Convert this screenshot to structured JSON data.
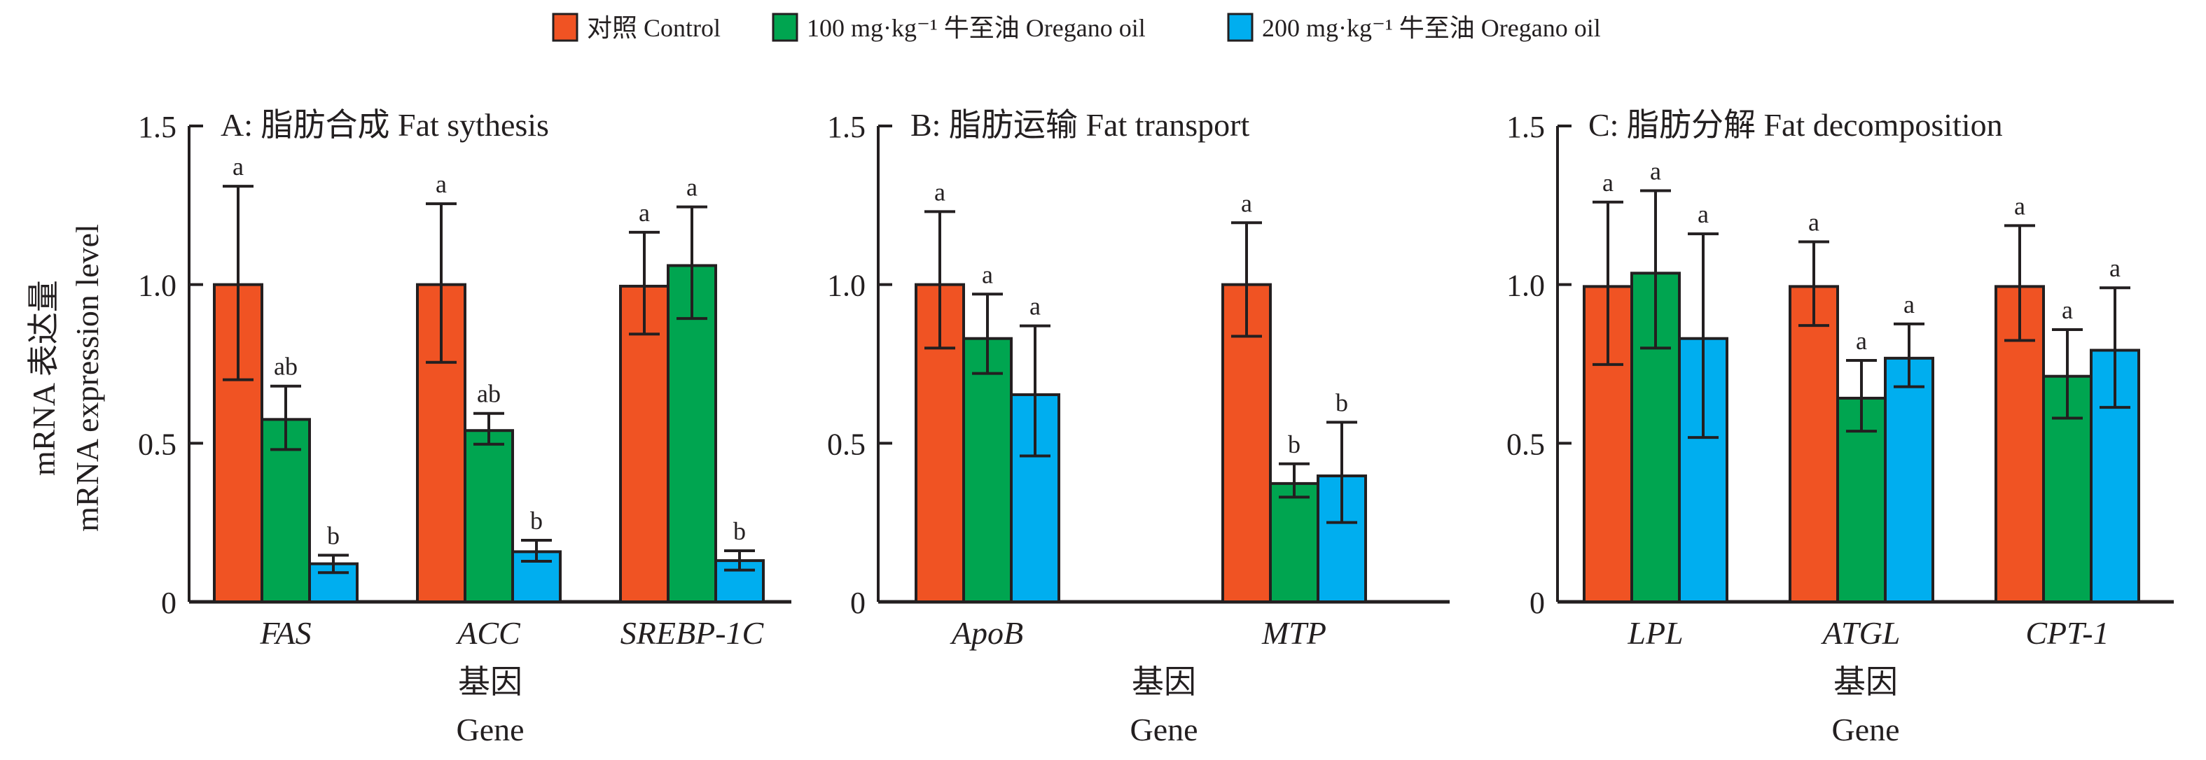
{
  "chart_data": {
    "type": "bar",
    "legend": {
      "placement": "top-center",
      "entries": [
        {
          "name": "对照 Control",
          "color": "#f05323"
        },
        {
          "name": "100 mg·kg⁻¹ 牛至油 Oregano oil",
          "color": "#00a550"
        },
        {
          "name": "200 mg·kg⁻¹ 牛至油 Oregano oil",
          "color": "#00aeef"
        }
      ]
    },
    "ylabel_cn": "mRNA 表达量",
    "ylabel_en": "mRNA expression level",
    "ylim": [
      0,
      1.5
    ],
    "yticks": [
      {
        "value": 0,
        "label": "0"
      },
      {
        "value": 0.5,
        "label": "0.5"
      },
      {
        "value": 1.0,
        "label": "1.0"
      },
      {
        "value": 1.5,
        "label": "1.5"
      }
    ],
    "panels": [
      {
        "id": "A",
        "title": "A: 脂肪合成 Fat sythesis",
        "xlabel_cn": "基因",
        "xlabel_en": "Gene",
        "categories": [
          "FAS",
          "ACC",
          "SREBP-1C"
        ],
        "series": [
          {
            "name": "对照 Control",
            "values": [
              1.0,
              1.0,
              0.995
            ],
            "err_high": [
              1.31,
              1.255,
              1.165
            ],
            "err_low": [
              0.7,
              0.755,
              0.844
            ],
            "sig": [
              "a",
              "a",
              "a"
            ]
          },
          {
            "name": "100 mg·kg⁻¹ 牛至油 Oregano oil",
            "values": [
              0.575,
              0.54,
              1.06
            ],
            "err_high": [
              0.68,
              0.594,
              1.245
            ],
            "err_low": [
              0.48,
              0.497,
              0.893
            ],
            "sig": [
              "ab",
              "ab",
              "a"
            ]
          },
          {
            "name": "200 mg·kg⁻¹ 牛至油 Oregano oil",
            "values": [
              0.12,
              0.158,
              0.13
            ],
            "err_high": [
              0.147,
              0.194,
              0.161
            ],
            "err_low": [
              0.092,
              0.128,
              0.1
            ],
            "sig": [
              "b",
              "b",
              "b"
            ]
          }
        ]
      },
      {
        "id": "B",
        "title": "B: 脂肪运输 Fat transport",
        "xlabel_cn": "基因",
        "xlabel_en": "Gene",
        "categories": [
          "ApoB",
          "MTP"
        ],
        "series": [
          {
            "name": "对照 Control",
            "values": [
              1.0,
              1.0
            ],
            "err_high": [
              1.23,
              1.195
            ],
            "err_low": [
              0.8,
              0.837
            ],
            "sig": [
              "a",
              "a"
            ]
          },
          {
            "name": "100 mg·kg⁻¹ 牛至油 Oregano oil",
            "values": [
              0.83,
              0.373
            ],
            "err_high": [
              0.97,
              0.435
            ],
            "err_low": [
              0.72,
              0.33
            ],
            "sig": [
              "a",
              "b"
            ]
          },
          {
            "name": "200 mg·kg⁻¹ 牛至油 Oregano oil",
            "values": [
              0.653,
              0.397
            ],
            "err_high": [
              0.87,
              0.566
            ],
            "err_low": [
              0.46,
              0.25
            ],
            "sig": [
              "a",
              "b"
            ]
          }
        ]
      },
      {
        "id": "C",
        "title": "C: 脂肪分解 Fat decomposition",
        "xlabel_cn": "基因",
        "xlabel_en": "Gene",
        "categories": [
          "LPL",
          "ATGL",
          "CPT-1"
        ],
        "series": [
          {
            "name": "对照 Control",
            "values": [
              0.994,
              0.994,
              0.994
            ],
            "err_high": [
              1.26,
              1.135,
              1.186
            ],
            "err_low": [
              0.748,
              0.871,
              0.824
            ],
            "sig": [
              "a",
              "a",
              "a"
            ]
          },
          {
            "name": "100 mg·kg⁻¹ 牛至油 Oregano oil",
            "values": [
              1.036,
              0.642,
              0.711
            ],
            "err_high": [
              1.296,
              0.761,
              0.858
            ],
            "err_low": [
              0.8,
              0.538,
              0.579
            ],
            "sig": [
              "a",
              "a",
              "a"
            ]
          },
          {
            "name": "200 mg·kg⁻¹ 牛至油 Oregano oil",
            "values": [
              0.83,
              0.768,
              0.793
            ],
            "err_high": [
              1.16,
              0.876,
              0.99
            ],
            "err_low": [
              0.518,
              0.678,
              0.613
            ],
            "sig": [
              "a",
              "a",
              "a"
            ]
          }
        ]
      }
    ]
  }
}
